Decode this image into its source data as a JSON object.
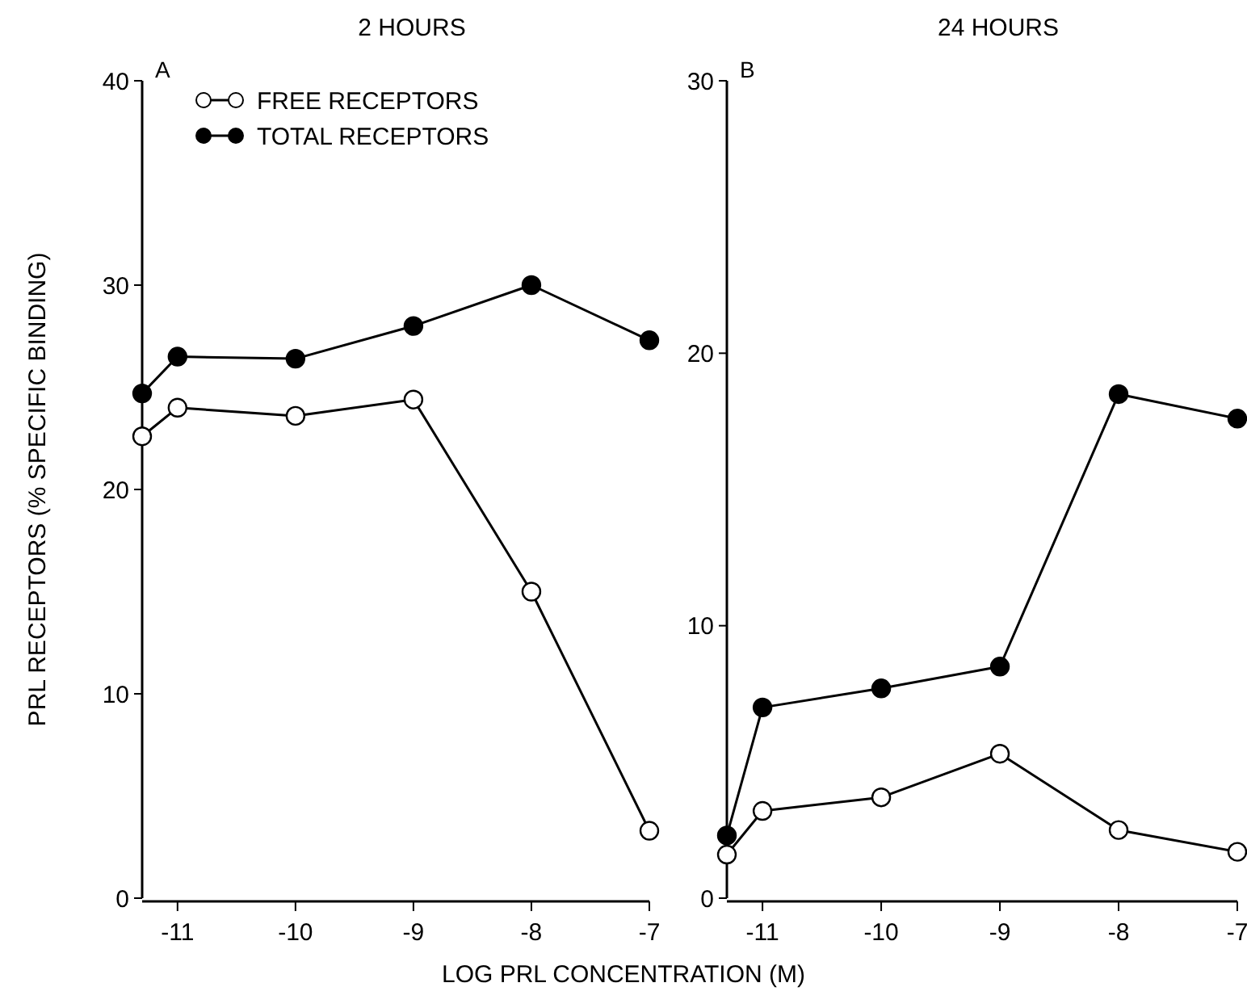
{
  "chart_data": [
    {
      "type": "line",
      "title": "2 HOURS",
      "xlabel": "LOG PRL CONCENTRATION (M)",
      "ylabel": "PRL RECEPTORS (% SPECIFIC BINDING)",
      "annotations": [
        "A"
      ],
      "x": [
        -11.3,
        -11,
        -10,
        -9,
        -8,
        -7
      ],
      "xlim": [
        -11.3,
        -7
      ],
      "xticks": [
        -11,
        -10,
        -9,
        -8,
        -7
      ],
      "ylim": [
        0,
        40
      ],
      "yticks": [
        0,
        10,
        20,
        30,
        40
      ],
      "grid": false,
      "legend": "top left",
      "marker": "circle",
      "line_style": "solid",
      "series": [
        {
          "name": "FREE RECEPTORS",
          "color": "#000000",
          "values": [
            22.6,
            24.0,
            23.6,
            24.4,
            15.0,
            3.3
          ]
        },
        {
          "name": "TOTAL RECEPTORS",
          "color": "#000000",
          "values": [
            24.7,
            26.5,
            26.4,
            28.0,
            30.0,
            27.3
          ]
        }
      ]
    },
    {
      "type": "line",
      "title": "24 HOURS",
      "annotations": [
        "B"
      ],
      "x": [
        -11.3,
        -11,
        -10,
        -9,
        -8,
        -7
      ],
      "xlim": [
        -11.3,
        -7
      ],
      "xticks": [
        -11,
        -10,
        -9,
        -8,
        -7
      ],
      "ylim": [
        0,
        30
      ],
      "yticks": [
        0,
        10,
        20,
        30
      ],
      "grid": false,
      "legend": false,
      "marker": "circle",
      "line_style": "solid",
      "series": [
        {
          "color": "#000000",
          "values": [
            1.6,
            3.2,
            3.7,
            5.3,
            2.5,
            1.7
          ]
        },
        {
          "color": "#000000",
          "values": [
            2.3,
            7.0,
            7.7,
            8.5,
            18.5,
            17.6
          ]
        }
      ]
    }
  ]
}
